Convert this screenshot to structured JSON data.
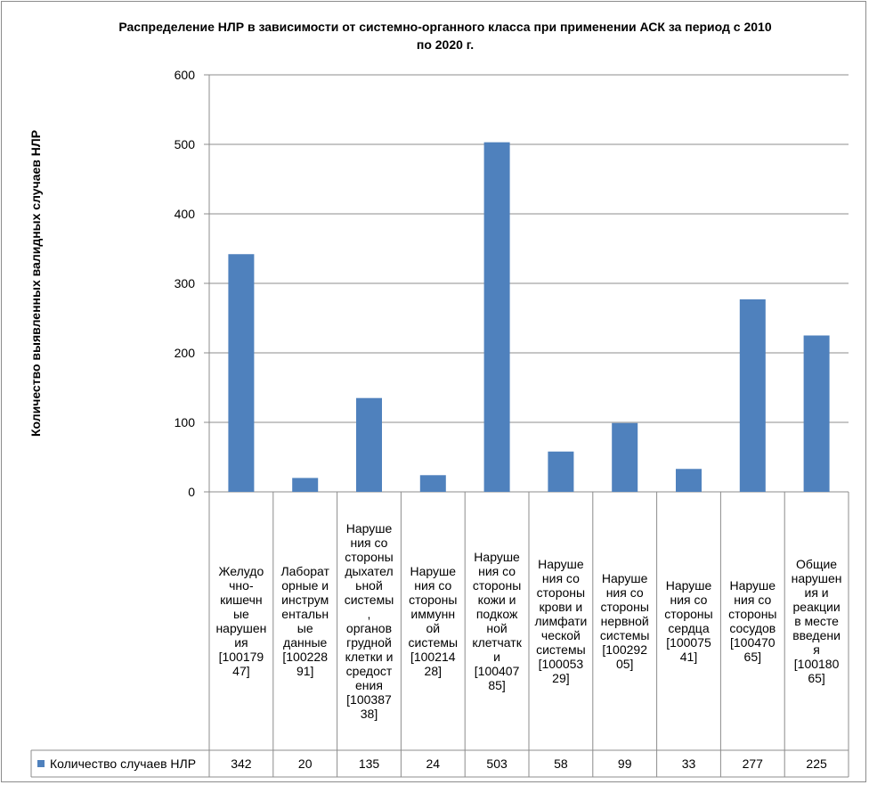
{
  "chart_data": {
    "type": "bar",
    "title": "Распределение НЛР в зависимости от системно-органного класса при применении АСК за период с 2010 по 2020 г.",
    "title_lines": [
      "Распределение НЛР в зависимости от системно-органного класса при применении АСК за период с 2010",
      "по 2020 г."
    ],
    "ylabel": "Количество выявленных валидных случаев НЛР",
    "ylim": [
      0,
      600
    ],
    "yticks": [
      0,
      100,
      200,
      300,
      400,
      500,
      600
    ],
    "grid": true,
    "legend_position": "data-table",
    "bar_color": "#4f81bd",
    "categories": [
      "Желудочно-кишечные нарушения [10017947]",
      "Лабораторные и инструментальные данные [10022891]",
      "Нарушения со стороны дыхательной системы, органов грудной клетки и средостения [10038738]",
      "Нарушения со стороны иммунной системы [10021428]",
      "Нарушения со стороны кожи и подкожной клетчатки [10040785]",
      "Нарушения со стороны крови и лимфатической системы [10005329]",
      "Нарушения со стороны нервной системы [10029205]",
      "Нарушения со стороны сердца [10007541]",
      "Нарушения со стороны сосудов [10047065]",
      "Общие нарушения и реакции в месте введения [10018065]"
    ],
    "category_label_lines": [
      [
        "Желудо",
        "чно-",
        "кишечн",
        "ые",
        "нарушен",
        "ия",
        "[100179",
        "47]"
      ],
      [
        "Лаборат",
        "орные и",
        "инструм",
        "ентальн",
        "ые",
        "данные",
        "[100228",
        "91]"
      ],
      [
        "Наруше",
        "ния со",
        "стороны",
        "дыхател",
        "ьной",
        "системы",
        ",",
        "органов",
        "грудной",
        "клетки и",
        "средост",
        "ения",
        "[100387",
        "38]"
      ],
      [
        "Наруше",
        "ния со",
        "стороны",
        "иммунн",
        "ой",
        "системы",
        "[100214",
        "28]"
      ],
      [
        "Наруше",
        "ния со",
        "стороны",
        "кожи и",
        "подкож",
        "ной",
        "клетчатк",
        "и",
        "[100407",
        "85]"
      ],
      [
        "Наруше",
        "ния со",
        "стороны",
        "крови и",
        "лимфати",
        "ческой",
        "системы",
        "[100053",
        "29]"
      ],
      [
        "Наруше",
        "ния со",
        "стороны",
        "нервной",
        "системы",
        "[100292",
        "05]"
      ],
      [
        "Наруше",
        "ния со",
        "стороны",
        "сердца",
        "[100075",
        "41]"
      ],
      [
        "Наруше",
        "ния со",
        "стороны",
        "сосудов",
        "[100470",
        "65]"
      ],
      [
        "Общие",
        "нарушен",
        "ия и",
        "реакции",
        "в месте",
        "введени",
        "я",
        "[100180",
        "65]"
      ]
    ],
    "series": [
      {
        "name": "Количество случаев НЛР",
        "values": [
          342,
          20,
          135,
          24,
          503,
          58,
          99,
          33,
          277,
          225
        ]
      }
    ]
  }
}
